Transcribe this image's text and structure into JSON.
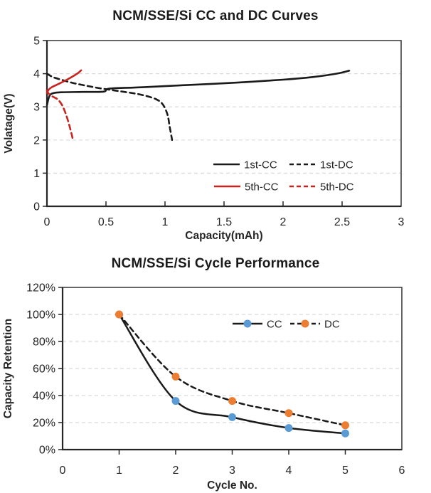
{
  "figure": {
    "background": "#ffffff",
    "text_color": "#262626",
    "grid_color": "#d9d9d9"
  },
  "chart_data": [
    {
      "type": "line",
      "title": "NCM/SSE/Si CC and DC Curves",
      "xlabel": "Capacity(mAh)",
      "ylabel": "Volatage(V)",
      "xlim": [
        0,
        3
      ],
      "ylim": [
        0,
        5
      ],
      "xtick_values": [
        0,
        0.5,
        1,
        1.5,
        2,
        2.5,
        3
      ],
      "xtick_labels": [
        "0",
        "0.5",
        "1",
        "1.5",
        "2",
        "2.5",
        "3"
      ],
      "ytick_values": [
        0,
        1,
        2,
        3,
        4,
        5
      ],
      "ytick_labels": [
        "0",
        "1",
        "2",
        "3",
        "4",
        "5"
      ],
      "grid": "horizontal-dashed",
      "grid_values": [
        1,
        2,
        3,
        4
      ],
      "legend_position": "inside-lower-right",
      "series": [
        {
          "name": "1st-CC",
          "color": "#1a1a1a",
          "style": "solid",
          "points": [
            [
              0,
              3.05
            ],
            [
              0.02,
              3.32
            ],
            [
              0.05,
              3.41
            ],
            [
              0.12,
              3.44
            ],
            [
              0.3,
              3.45
            ],
            [
              0.48,
              3.46
            ],
            [
              0.53,
              3.55
            ],
            [
              0.8,
              3.59
            ],
            [
              1.2,
              3.66
            ],
            [
              1.6,
              3.73
            ],
            [
              2.0,
              3.82
            ],
            [
              2.25,
              3.9
            ],
            [
              2.45,
              4.0
            ],
            [
              2.56,
              4.09
            ]
          ]
        },
        {
          "name": "1st-DC",
          "color": "#1a1a1a",
          "style": "dashed",
          "points": [
            [
              0,
              4.0
            ],
            [
              0.05,
              3.9
            ],
            [
              0.12,
              3.82
            ],
            [
              0.22,
              3.72
            ],
            [
              0.33,
              3.64
            ],
            [
              0.45,
              3.56
            ],
            [
              0.6,
              3.48
            ],
            [
              0.75,
              3.4
            ],
            [
              0.85,
              3.32
            ],
            [
              0.93,
              3.22
            ],
            [
              0.98,
              3.08
            ],
            [
              1.02,
              2.78
            ],
            [
              1.04,
              2.4
            ],
            [
              1.06,
              2.0
            ]
          ]
        },
        {
          "name": "5th-CC",
          "color": "#c9231f",
          "style": "solid",
          "points": [
            [
              0,
              3.42
            ],
            [
              0.015,
              3.52
            ],
            [
              0.04,
              3.59
            ],
            [
              0.08,
              3.66
            ],
            [
              0.12,
              3.73
            ],
            [
              0.17,
              3.82
            ],
            [
              0.22,
              3.92
            ],
            [
              0.26,
              4.01
            ],
            [
              0.29,
              4.1
            ]
          ]
        },
        {
          "name": "5th-DC",
          "color": "#c9231f",
          "style": "dashed",
          "points": [
            [
              0,
              3.5
            ],
            [
              0.01,
              3.42
            ],
            [
              0.03,
              3.35
            ],
            [
              0.06,
              3.29
            ],
            [
              0.09,
              3.23
            ],
            [
              0.11,
              3.15
            ],
            [
              0.13,
              3.04
            ],
            [
              0.15,
              2.88
            ],
            [
              0.17,
              2.68
            ],
            [
              0.19,
              2.44
            ],
            [
              0.21,
              2.16
            ],
            [
              0.22,
              2.0
            ]
          ]
        }
      ]
    },
    {
      "type": "line",
      "title": "NCM/SSE/Si Cycle Performance",
      "xlabel": "Cycle No.",
      "ylabel": "Capacity Retention",
      "xlim": [
        0,
        6
      ],
      "ylim": [
        0,
        1.2
      ],
      "xtick_values": [
        0,
        1,
        2,
        3,
        4,
        5,
        6
      ],
      "xtick_labels": [
        "0",
        "1",
        "2",
        "3",
        "4",
        "5",
        "6"
      ],
      "ytick_values": [
        0,
        0.2,
        0.4,
        0.6,
        0.8,
        1.0,
        1.2
      ],
      "ytick_labels": [
        "0%",
        "20%",
        "40%",
        "60%",
        "80%",
        "100%",
        "120%"
      ],
      "grid": "horizontal-dashed",
      "grid_values": [
        0.2,
        0.4,
        0.6,
        0.8,
        1.0
      ],
      "legend_position": "inside-upper-right",
      "x": [
        1,
        2,
        3,
        4,
        5
      ],
      "series": [
        {
          "name": "CC",
          "color": "#1a1a1a",
          "style": "solid",
          "marker_color": "#5b9bd5",
          "values": [
            1.0,
            0.36,
            0.24,
            0.16,
            0.12
          ]
        },
        {
          "name": "DC",
          "color": "#1a1a1a",
          "style": "dashed",
          "marker_color": "#ed7d31",
          "values": [
            1.0,
            0.54,
            0.36,
            0.27,
            0.18
          ]
        }
      ]
    }
  ]
}
